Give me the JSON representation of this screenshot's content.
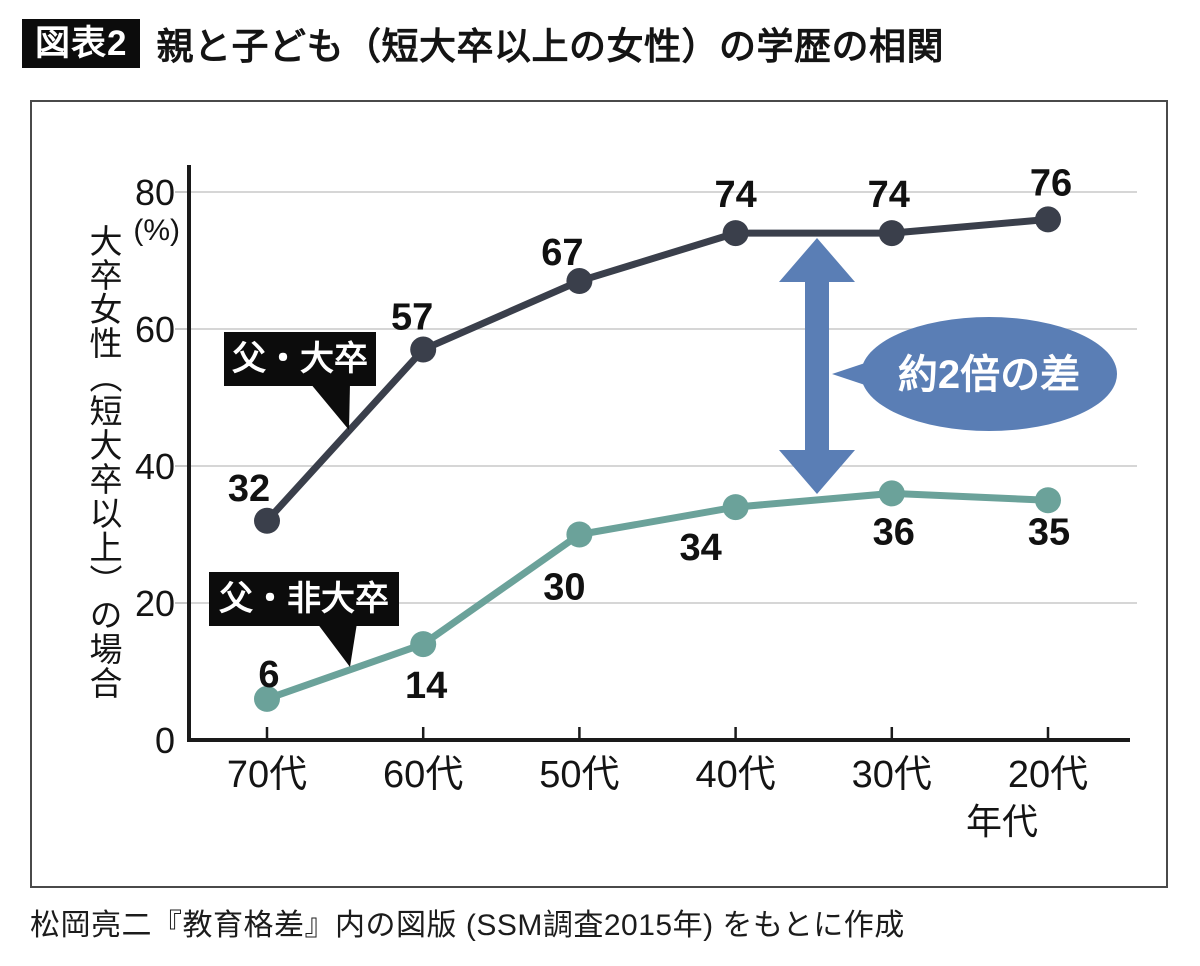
{
  "header": {
    "badge": "図表2",
    "title": "親と子ども（短大卒以上の女性）の学歴の相関"
  },
  "caption": "松岡亮二『教育格差』内の図版 (SSM調査2015年) をもとに作成",
  "chart_data": {
    "type": "line",
    "categories": [
      "70代",
      "60代",
      "50代",
      "40代",
      "30代",
      "20代"
    ],
    "x_axis_label": "年代",
    "y_axis_label": "大卒女性（短大卒以上）の場合",
    "y_unit": "(%)",
    "ylim": [
      0,
      80
    ],
    "y_ticks": [
      0,
      20,
      40,
      60,
      80
    ],
    "grid": true,
    "legend_position": "callouts-on-lines",
    "series": [
      {
        "name": "父・大卒",
        "values": [
          32,
          57,
          67,
          74,
          74,
          76
        ],
        "color": "#3a3f4b"
      },
      {
        "name": "父・非大卒",
        "values": [
          6,
          14,
          30,
          34,
          36,
          35
        ],
        "color": "#6ba29a"
      }
    ],
    "annotation": {
      "text": "約2倍の差",
      "shape": "double-headed-vertical-arrow-with-ellipse",
      "color": "#5a7eb5",
      "text_color": "#ffffff"
    },
    "colors": {
      "axis": "#1a1a1a",
      "gridline": "#c9c9c9",
      "value_label": "#111111",
      "callout_bg": "#0c0c0c",
      "callout_text": "#ffffff"
    }
  }
}
